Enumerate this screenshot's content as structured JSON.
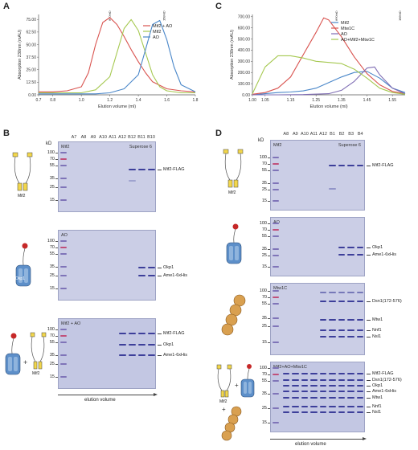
{
  "panels": {
    "a": "A",
    "b": "B",
    "c": "C",
    "d": "D"
  },
  "chart_a": {
    "ylabel": "Absorption 230nm (mAU)",
    "xlabel": "Elution volume (ml)",
    "yticks": [
      "75.00",
      "62.50",
      "50.00",
      "37.50",
      "25.00",
      "12.50",
      "0.00"
    ],
    "xticks": [
      "0.7",
      "0.8",
      "1.0",
      "1.2",
      "1.4",
      "1.6",
      "1.8"
    ],
    "markers": [
      "670 kD",
      "158 kD"
    ],
    "legend": [
      "Mif2 + AO",
      "Mif2",
      "AO"
    ]
  },
  "chart_c": {
    "ylabel": "Absorption 230nm (mAU)",
    "xlabel": "Elution volume (ml)",
    "yticks": [
      "700.00",
      "600.00",
      "500.00",
      "400.00",
      "300.00",
      "200.00",
      "100.00",
      "0.00"
    ],
    "xticks": [
      "1.00",
      "1.05",
      "1.15",
      "1.25",
      "1.35",
      "1.45",
      "1.55"
    ],
    "markers": [
      "670 kD",
      "158 kD"
    ],
    "legend": [
      "Mif2",
      "Mtw1C",
      "AO",
      "AO+Mif2+Mtw1C"
    ]
  },
  "chart_data": [
    {
      "type": "line",
      "xlabel": "Elution volume (ml)",
      "ylabel": "Absorption 230nm (mAU)",
      "xlim": [
        0.7,
        1.8
      ],
      "ylim": [
        0,
        80
      ],
      "series": [
        {
          "name": "Mif2 + AO",
          "color": "#d9534f",
          "x": [
            0.7,
            0.8,
            0.9,
            1.0,
            1.05,
            1.1,
            1.15,
            1.2,
            1.25,
            1.3,
            1.35,
            1.4,
            1.45,
            1.5,
            1.6,
            1.7,
            1.8
          ],
          "y": [
            3,
            3,
            4,
            8,
            22,
            50,
            72,
            77,
            70,
            58,
            45,
            33,
            22,
            13,
            6,
            4,
            3
          ]
        },
        {
          "name": "Mif2",
          "color": "#a5c84f",
          "x": [
            0.7,
            0.8,
            0.9,
            1.0,
            1.1,
            1.2,
            1.25,
            1.3,
            1.35,
            1.4,
            1.45,
            1.5,
            1.55,
            1.6,
            1.7,
            1.8
          ],
          "y": [
            2,
            2,
            2,
            2,
            5,
            18,
            42,
            66,
            75,
            64,
            42,
            20,
            8,
            4,
            2,
            2
          ]
        },
        {
          "name": "AO",
          "color": "#4a87c9",
          "x": [
            0.7,
            0.8,
            0.9,
            1.0,
            1.1,
            1.2,
            1.3,
            1.4,
            1.45,
            1.5,
            1.55,
            1.6,
            1.65,
            1.7,
            1.8
          ],
          "y": [
            1,
            1,
            1,
            1,
            1,
            2,
            6,
            20,
            45,
            70,
            74,
            55,
            28,
            10,
            3
          ]
        }
      ]
    },
    {
      "type": "line",
      "xlabel": "Elution volume (ml)",
      "ylabel": "Absorption 230nm (mAU)",
      "xlim": [
        1.0,
        1.6
      ],
      "ylim": [
        0,
        720
      ],
      "series": [
        {
          "name": "Mif2",
          "color": "#4a87c9",
          "x": [
            1.0,
            1.05,
            1.1,
            1.15,
            1.2,
            1.25,
            1.3,
            1.35,
            1.4,
            1.45,
            1.5,
            1.55,
            1.6
          ],
          "y": [
            0,
            10,
            20,
            25,
            35,
            60,
            110,
            160,
            200,
            210,
            150,
            60,
            20
          ]
        },
        {
          "name": "Mtw1C",
          "color": "#d9534f",
          "x": [
            1.0,
            1.05,
            1.1,
            1.15,
            1.2,
            1.25,
            1.28,
            1.3,
            1.35,
            1.4,
            1.45,
            1.5,
            1.55,
            1.6
          ],
          "y": [
            5,
            20,
            60,
            160,
            360,
            560,
            690,
            670,
            520,
            340,
            190,
            90,
            30,
            10
          ]
        },
        {
          "name": "AO",
          "color": "#7e6cb3",
          "x": [
            1.0,
            1.1,
            1.2,
            1.3,
            1.35,
            1.4,
            1.45,
            1.48,
            1.5,
            1.55,
            1.6
          ],
          "y": [
            0,
            0,
            2,
            10,
            40,
            120,
            240,
            250,
            180,
            60,
            10
          ]
        },
        {
          "name": "AO+Mif2+Mtw1C",
          "color": "#a5c84f",
          "x": [
            1.0,
            1.05,
            1.1,
            1.15,
            1.2,
            1.25,
            1.3,
            1.35,
            1.4,
            1.45,
            1.5,
            1.55,
            1.6
          ],
          "y": [
            10,
            250,
            350,
            350,
            330,
            300,
            290,
            280,
            230,
            150,
            60,
            20,
            5
          ]
        }
      ]
    }
  ],
  "panel_b": {
    "kd": "kD",
    "lanes": [
      "A7",
      "A8",
      "A9",
      "A10",
      "A11",
      "A12",
      "B12",
      "B11",
      "B10"
    ],
    "ladder": [
      "100",
      "70",
      "55",
      "35",
      "25",
      "15"
    ],
    "gels": [
      {
        "tag": "Mif2",
        "column": "Superose 6",
        "labels": [
          "Mif2-FLAG"
        ]
      },
      {
        "tag": "AO",
        "column": "",
        "labels": [
          "Okp1",
          "Ame1-6xHis"
        ]
      },
      {
        "tag": "Mif2 + AO",
        "column": "",
        "labels": [
          "Mif2-FLAG",
          "Okp1",
          "Ame1-6xHis"
        ]
      }
    ],
    "icon_labels": [
      "Mif2",
      "Okp1",
      "Mif2"
    ],
    "elution": "elution volume"
  },
  "panel_d": {
    "kd": "kD",
    "lanes": [
      "A8",
      "A9",
      "A10",
      "A11",
      "A12",
      "B1",
      "B2",
      "B3",
      "B4"
    ],
    "ladder": [
      "100",
      "70",
      "55",
      "35",
      "25",
      "15"
    ],
    "gels": [
      {
        "tag": "Mif2",
        "column": "Superose 6",
        "labels": [
          "Mif2-FLAG"
        ]
      },
      {
        "tag": "AO",
        "column": "",
        "labels": [
          "Okp1",
          "Ame1-6xHis"
        ]
      },
      {
        "tag": "Mtw1C",
        "column": "",
        "labels": [
          "Dsn1(172-576)",
          "Mtw1",
          "Nnf1",
          "Nsl1"
        ]
      },
      {
        "tag": "Mif2+AO+Mtw1C",
        "column": "",
        "labels": [
          "Mif2-FLAG",
          "Dsn1(172-576)",
          "Okp1",
          "Ame1-6xHis",
          "Mtw1",
          "Nnf1",
          "Nsl1"
        ]
      }
    ],
    "icon_labels": [
      "Mif2",
      "Mif2"
    ],
    "elution": "elution volume"
  }
}
